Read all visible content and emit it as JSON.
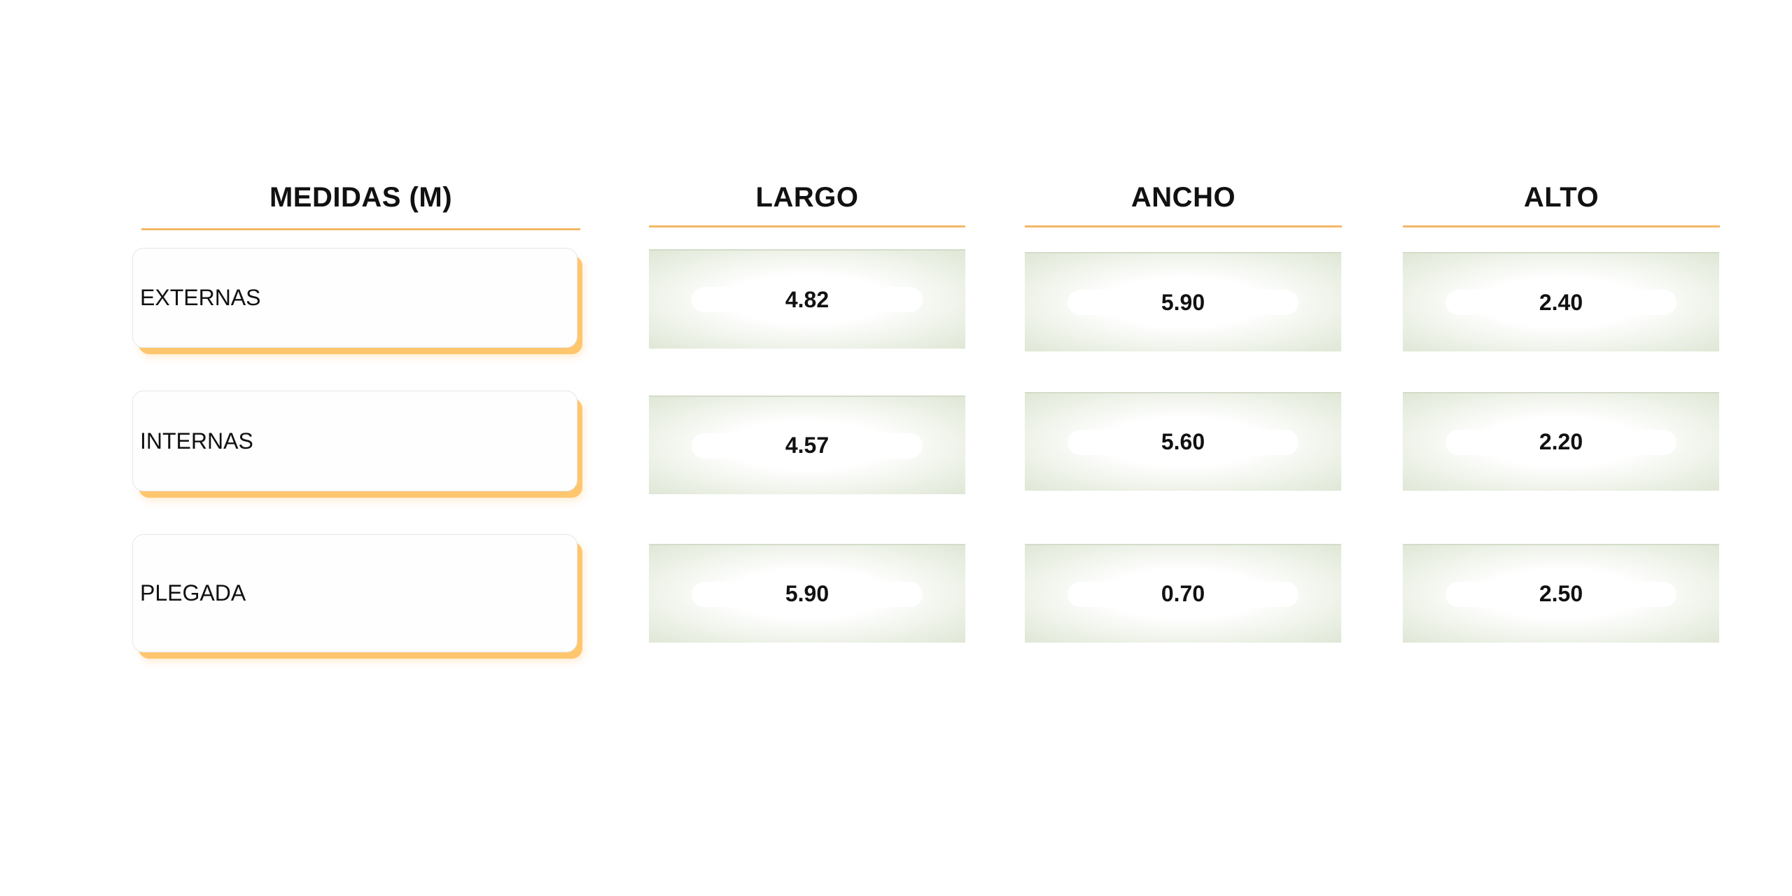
{
  "headers": {
    "medidas": "MEDIDAS (M)",
    "largo": "LARGO",
    "ancho": "ANCHO",
    "alto": "ALTO"
  },
  "rows": [
    {
      "label": "EXTERNAS",
      "largo": "4.82",
      "ancho": "5.90",
      "alto": "2.40"
    },
    {
      "label": "INTERNAS",
      "largo": "4.57",
      "ancho": "5.60",
      "alto": "2.20"
    },
    {
      "label": "PLEGADA",
      "largo": "5.90",
      "ancho": "0.70",
      "alto": "2.50"
    }
  ],
  "colors": {
    "accent_orange": "#f3b868",
    "card_shadow": "#ffc66e",
    "value_bg_edge": "#dfe7d6"
  }
}
